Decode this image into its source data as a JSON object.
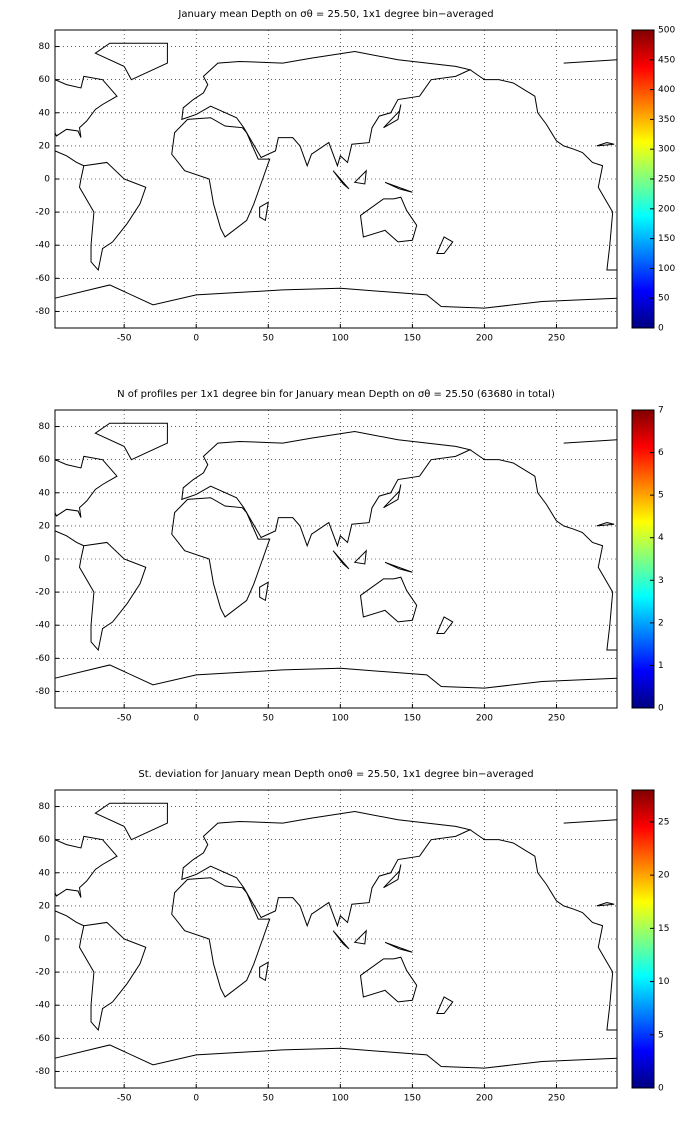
{
  "chart_data": [
    {
      "type": "heatmap",
      "title": "January mean Depth on σθ = 25.50, 1x1 degree bin−averaged",
      "xlim": [
        -98,
        292
      ],
      "ylim": [
        -90,
        90
      ],
      "xticks": [
        -50,
        0,
        50,
        100,
        150,
        200,
        250
      ],
      "yticks": [
        -80,
        -60,
        -40,
        -20,
        0,
        20,
        40,
        60,
        80
      ],
      "grid": true,
      "colormap": "jet",
      "clim": [
        0,
        500
      ],
      "cticks": [
        0,
        50,
        100,
        150,
        200,
        250,
        300,
        350,
        400,
        450,
        500
      ]
    },
    {
      "type": "heatmap",
      "title": "N of profiles per 1x1 degree bin for January mean Depth on σθ = 25.50 (63680 in total)",
      "xlim": [
        -98,
        292
      ],
      "ylim": [
        -90,
        90
      ],
      "xticks": [
        -50,
        0,
        50,
        100,
        150,
        200,
        250
      ],
      "yticks": [
        -80,
        -60,
        -40,
        -20,
        0,
        20,
        40,
        60,
        80
      ],
      "grid": true,
      "colormap": "jet",
      "clim": [
        0,
        7
      ],
      "cticks": [
        0,
        1,
        2,
        3,
        4,
        5,
        6,
        7
      ]
    },
    {
      "type": "heatmap",
      "title": "St. deviation for January mean Depth onσθ = 25.50, 1x1 degree bin−averaged",
      "xlim": [
        -98,
        292
      ],
      "ylim": [
        -90,
        90
      ],
      "xticks": [
        -50,
        0,
        50,
        100,
        150,
        200,
        250
      ],
      "yticks": [
        -80,
        -60,
        -40,
        -20,
        0,
        20,
        40,
        60,
        80
      ],
      "grid": true,
      "colormap": "jet",
      "clim": [
        0,
        28
      ],
      "cticks": [
        0,
        5,
        10,
        15,
        20,
        25
      ]
    }
  ]
}
